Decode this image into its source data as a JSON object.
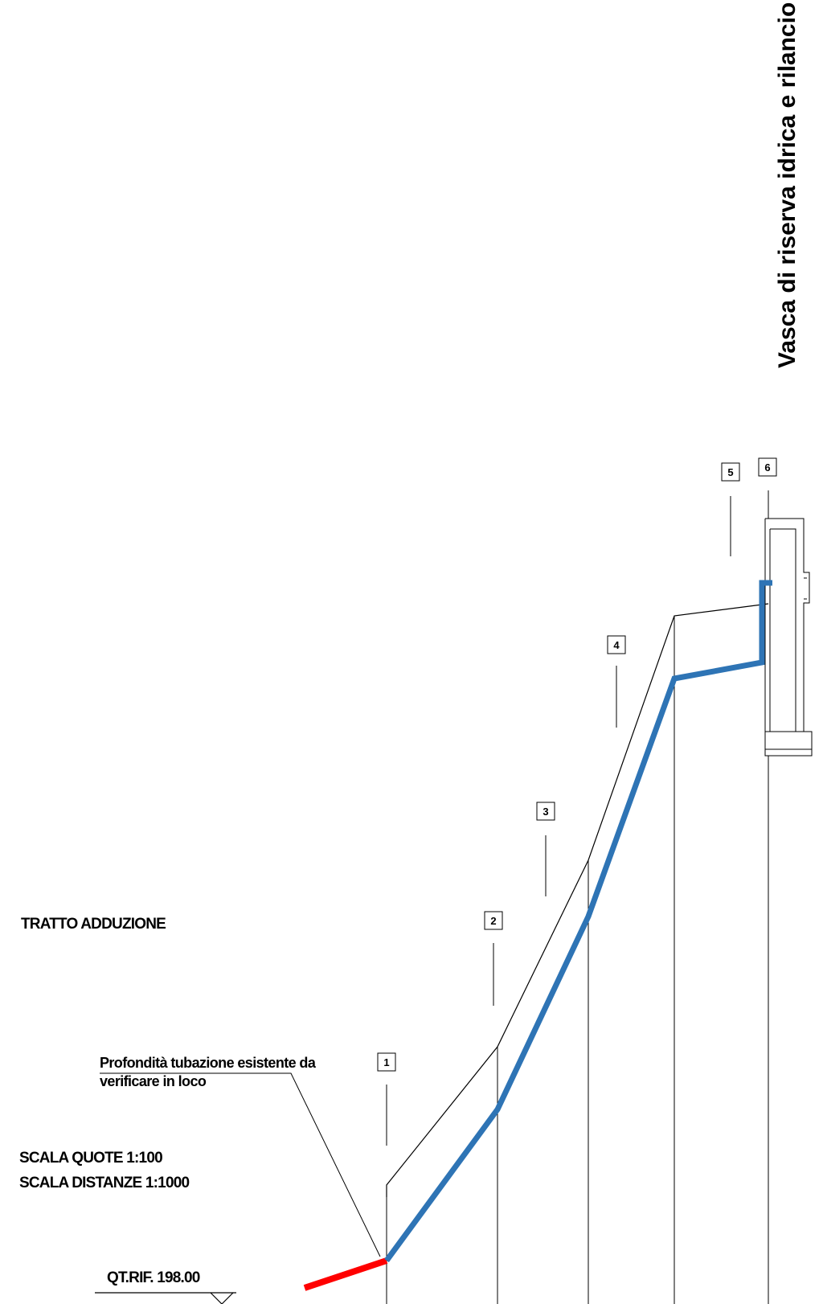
{
  "title": "Vasca di riserva idrica e rilancio",
  "section_label": "TRATTO ADDUZIONE",
  "scale_heights": "SCALA QUOTE 1:100",
  "scale_distances": "SCALA DISTANZE 1:1000",
  "reference_level": "QT.RIF. 198.00",
  "note_line1": "Profondità tubazione esistente da",
  "note_line2": "verificare in loco",
  "stations": [
    {
      "label": "1"
    },
    {
      "label": "2"
    },
    {
      "label": "3"
    },
    {
      "label": "4"
    },
    {
      "label": "5"
    },
    {
      "label": "6"
    }
  ],
  "colors": {
    "new_pipe": "#2e74b5",
    "existing_pipe": "#ff0000",
    "lines": "#000000"
  }
}
